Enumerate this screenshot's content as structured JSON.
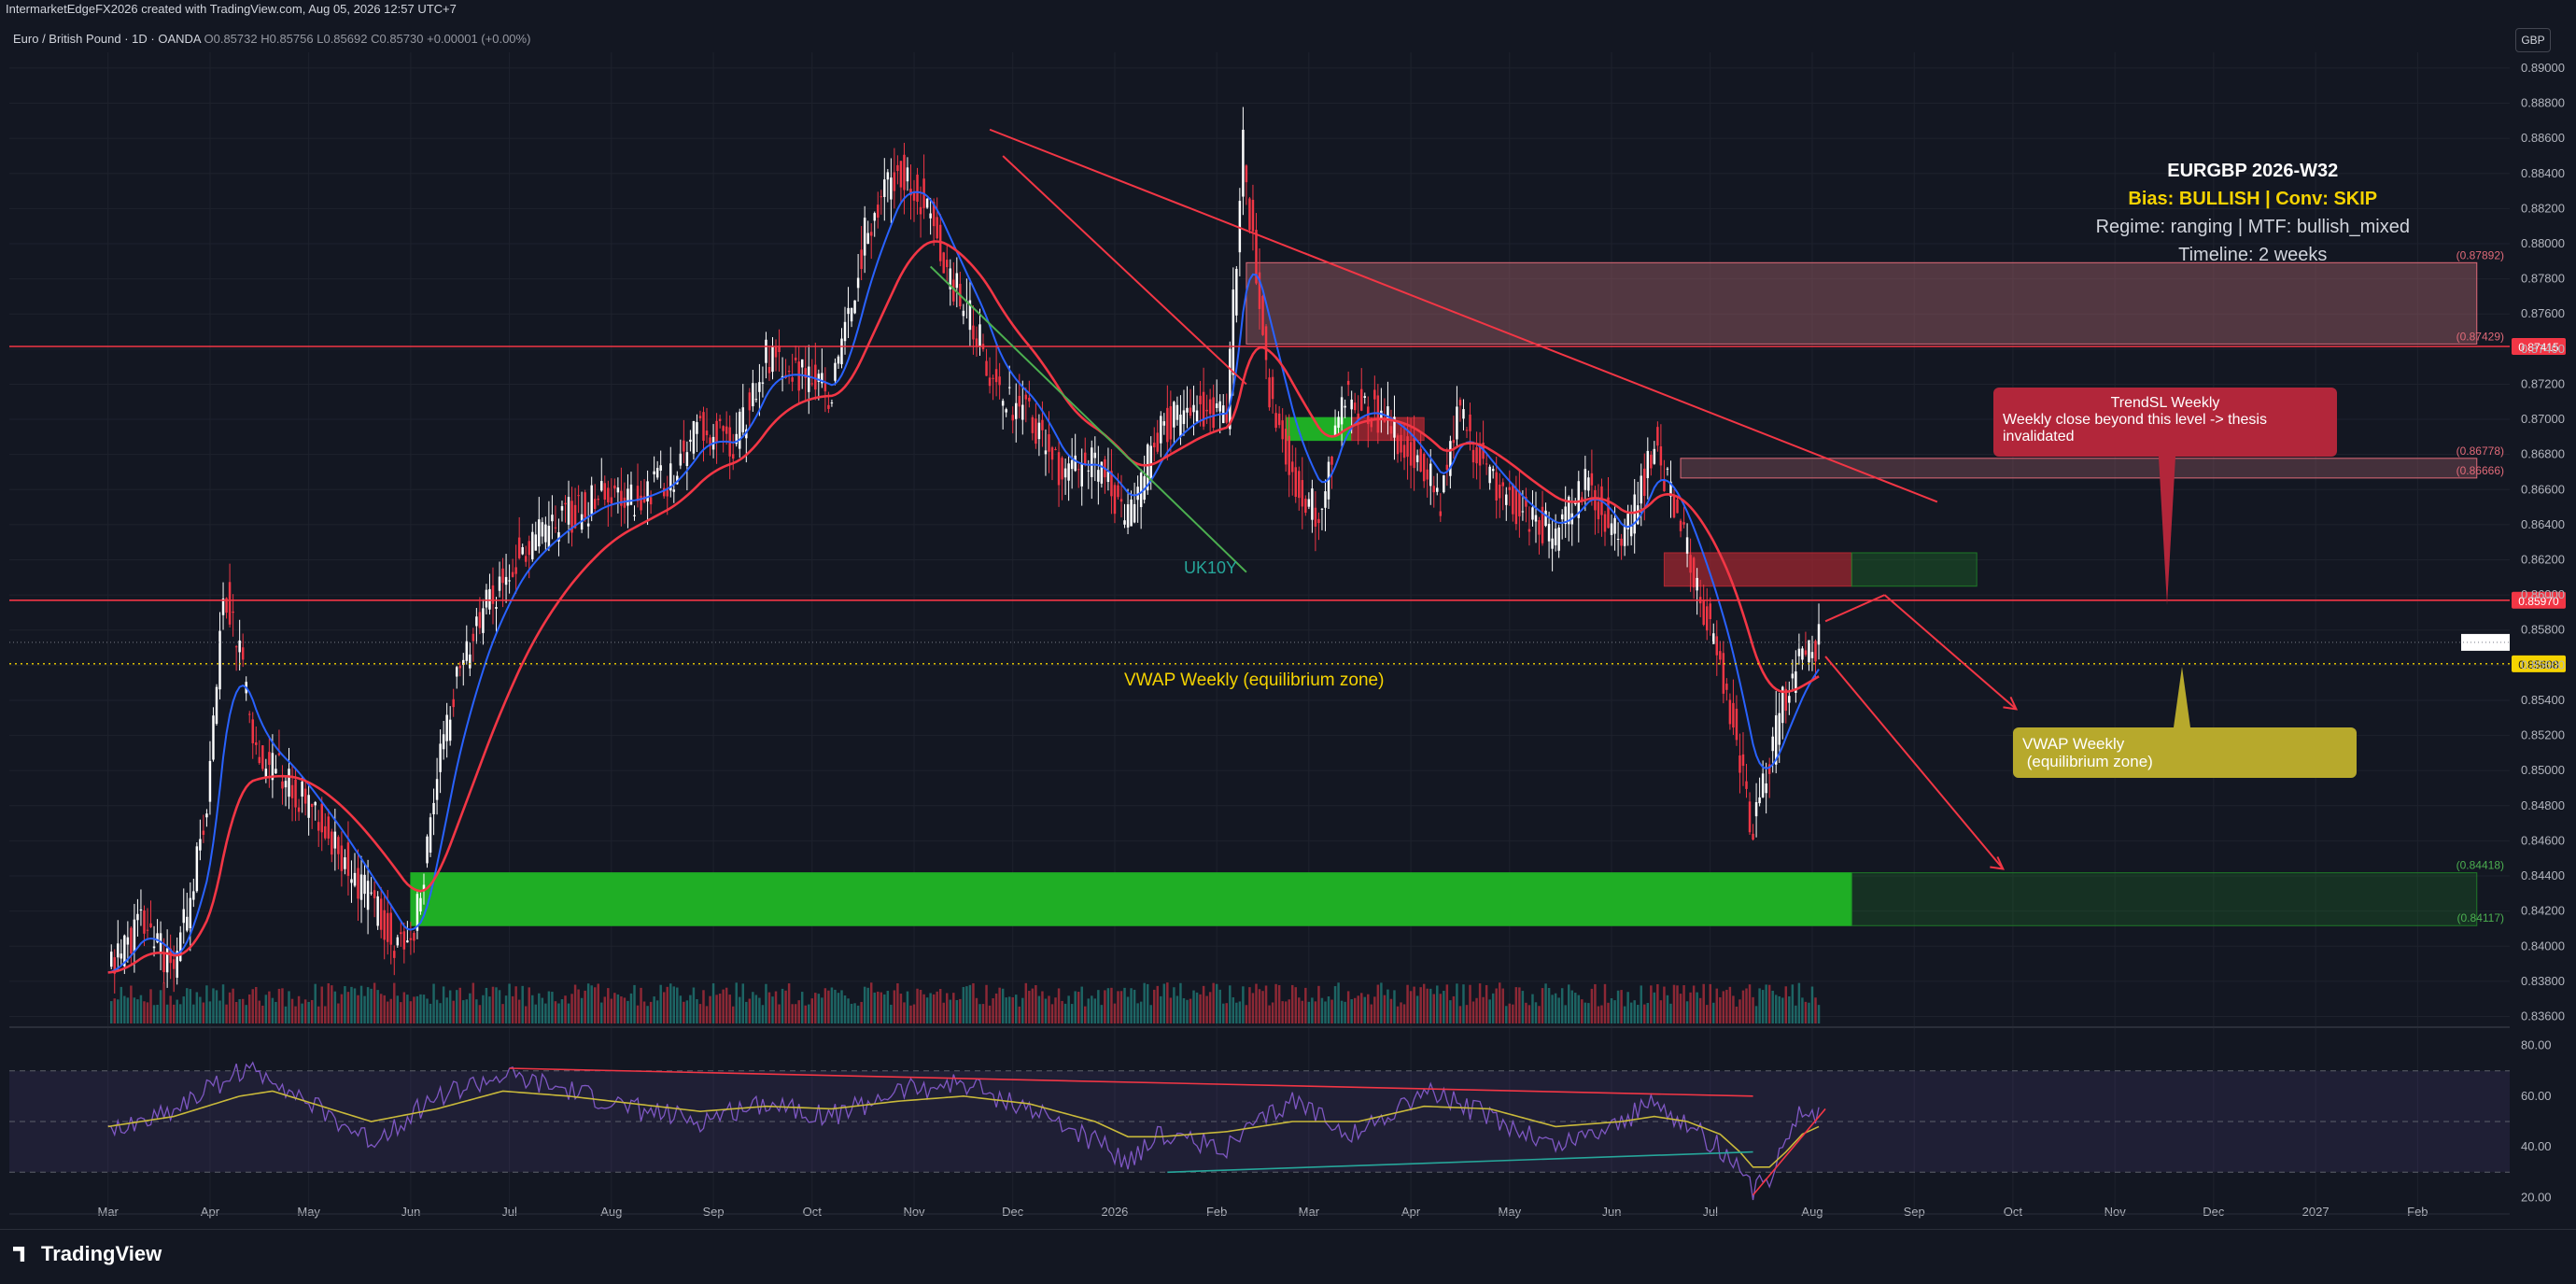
{
  "header": {
    "credit": "IntermarketEdgeFX2026 created with TradingView.com, Aug 05, 2026 12:57 UTC+7",
    "symbol": "Euro / British Pound · 1D · OANDA",
    "open": "O0.85732",
    "high": "H0.85756",
    "low": "L0.85692",
    "close": "C0.85730",
    "change": "+0.00001 (+0.00%)",
    "currency_button": "GBP"
  },
  "info_panel": {
    "title": "EURGBP 2026-W32",
    "bias": "Bias: BULLISH | Conv: SKIP",
    "regime": "Regime: ranging | MTF: bullish_mixed",
    "timeline": "Timeline: 2 weeks"
  },
  "callouts": {
    "trend_sl_title": "TrendSL Weekly",
    "trend_sl_body": "Weekly close beyond this level -> thesis invalidated",
    "vwap_box_line1": "VWAP Weekly",
    "vwap_box_line2": " (equilibrium zone)",
    "vwap_label": "VWAP Weekly (equilibrium zone)",
    "uk10y_label": "UK10Y"
  },
  "footer": {
    "brand": "TradingView"
  },
  "colors": {
    "background": "#131722",
    "bull": "#ffffff",
    "bear": "#f23645",
    "ema_fast": "#2962ff",
    "ema_slow": "#f23645",
    "vwap": "#f5d300",
    "demand_zone": "#1fae25",
    "supply_zone": "#8a4a55",
    "rsi_line": "#7e57c2",
    "rsi_signal": "#c9b93a"
  },
  "chart_data": {
    "type": "line",
    "title": "Euro / British Pound · 1D · OANDA",
    "x_ticks": [
      "Mar",
      "Apr",
      "May",
      "Jun",
      "Jul",
      "Aug",
      "Sep",
      "Oct",
      "Nov",
      "Dec",
      "2026",
      "Feb",
      "Mar",
      "Apr",
      "May",
      "Jun",
      "Jul",
      "Aug",
      "Sep",
      "Oct",
      "Nov",
      "Dec",
      "2027",
      "Feb"
    ],
    "x_tick_index": [
      0,
      31,
      61,
      92,
      122,
      153,
      184,
      214,
      245,
      275,
      306,
      337,
      365,
      396,
      426,
      457,
      487,
      518,
      549,
      579,
      610,
      640,
      671,
      702
    ],
    "y_ticks": [
      "0.89000",
      "0.88800",
      "0.88600",
      "0.88400",
      "0.88200",
      "0.88000",
      "0.87800",
      "0.87600",
      "0.87400",
      "0.87200",
      "0.87000",
      "0.86800",
      "0.86600",
      "0.86400",
      "0.86200",
      "0.86000",
      "0.85800",
      "0.85600",
      "0.85400",
      "0.85200",
      "0.85000",
      "0.84800",
      "0.84600",
      "0.84400",
      "0.84200",
      "0.84000",
      "0.83800",
      "0.83600"
    ],
    "ylim": [
      0.8356,
      0.8909
    ],
    "close_series": {
      "index": [
        0,
        10,
        20,
        30,
        35,
        40,
        45,
        55,
        70,
        80,
        90,
        95,
        100,
        105,
        115,
        125,
        140,
        150,
        160,
        170,
        180,
        190,
        200,
        210,
        220,
        230,
        240,
        248,
        255,
        260,
        265,
        270,
        280,
        290,
        300,
        310,
        320,
        330,
        340,
        345,
        352,
        360,
        368,
        375,
        385,
        395,
        405,
        410,
        420,
        430,
        440,
        450,
        460,
        470,
        480,
        488,
        492,
        496,
        500,
        505,
        510,
        515,
        520
      ],
      "values": [
        0.8385,
        0.8415,
        0.8385,
        0.8475,
        0.8605,
        0.8565,
        0.8505,
        0.8495,
        0.8455,
        0.8425,
        0.8395,
        0.8425,
        0.8495,
        0.8545,
        0.8595,
        0.8625,
        0.8645,
        0.8655,
        0.8655,
        0.8665,
        0.8695,
        0.8685,
        0.8735,
        0.8725,
        0.8715,
        0.8805,
        0.8845,
        0.8825,
        0.8785,
        0.8765,
        0.8745,
        0.8715,
        0.8705,
        0.8665,
        0.8675,
        0.8645,
        0.8695,
        0.8705,
        0.8705,
        0.8855,
        0.8725,
        0.8665,
        0.8645,
        0.8715,
        0.8705,
        0.8685,
        0.8655,
        0.8705,
        0.8665,
        0.8645,
        0.8635,
        0.8665,
        0.8625,
        0.8685,
        0.8625,
        0.8575,
        0.8545,
        0.8505,
        0.8465,
        0.8505,
        0.8545,
        0.8565,
        0.8573
      ]
    },
    "last_index": 520,
    "levels": [
      {
        "value": 0.87892,
        "label": "(0.87892)"
      },
      {
        "value": 0.87429,
        "label": "(0.87429)"
      },
      {
        "value": 0.87415,
        "label": "0.87415"
      },
      {
        "value": 0.86778,
        "label": "(0.86778)"
      },
      {
        "value": 0.86666,
        "label": "(0.86666)"
      },
      {
        "value": 0.8597,
        "label": "0.85970"
      },
      {
        "value": 0.85608,
        "label": "0.85608"
      },
      {
        "value": 0.84418,
        "label": "(0.84418)"
      },
      {
        "value": 0.84117,
        "label": "(0.84117)"
      }
    ],
    "zones": [
      {
        "kind": "supply",
        "from_index": 346,
        "to_index": 720,
        "low": 0.87429,
        "high": 0.87892
      },
      {
        "kind": "supply-thin",
        "from_index": 478,
        "to_index": 720,
        "low": 0.86666,
        "high": 0.86778
      },
      {
        "kind": "demand",
        "from_index": 92,
        "to_index": 530,
        "low": 0.84117,
        "high": 0.84418
      },
      {
        "kind": "demand-ext",
        "from_index": 530,
        "to_index": 720,
        "low": 0.84117,
        "high": 0.84418
      },
      {
        "kind": "ob-red",
        "from_index": 473,
        "to_index": 530,
        "low": 0.8605,
        "high": 0.8624
      },
      {
        "kind": "ob-green-ext",
        "from_index": 530,
        "to_index": 568,
        "low": 0.8605,
        "high": 0.8624
      },
      {
        "kind": "ob-green",
        "from_index": 358,
        "to_index": 378,
        "low": 0.8688,
        "high": 0.8701
      },
      {
        "kind": "ob-red-small",
        "from_index": 378,
        "to_index": 400,
        "low": 0.8688,
        "high": 0.8701
      }
    ],
    "trendlines": [
      {
        "from": [
          268,
          0.8865
        ],
        "to": [
          556,
          0.8653
        ],
        "color": "#f23645"
      },
      {
        "from": [
          272,
          0.885
        ],
        "to": [
          346,
          0.872
        ],
        "color": "#f23645"
      },
      {
        "from": [
          250,
          0.8787
        ],
        "to": [
          346,
          0.8613
        ],
        "color": "#4caf50"
      },
      {
        "from": [
          522,
          0.8585
        ],
        "to": [
          540,
          0.86
        ],
        "color": "#f23645"
      },
      {
        "from": [
          540,
          0.86
        ],
        "to": [
          580,
          0.8535
        ],
        "color": "#f23645"
      },
      {
        "from": [
          522,
          0.8565
        ],
        "to": [
          576,
          0.8444
        ],
        "color": "#f23645"
      }
    ],
    "rsi": {
      "ylim": [
        15,
        85
      ],
      "y_ticks": [
        "80.00",
        "60.00",
        "40.00",
        "20.00"
      ],
      "levels": [
        70,
        50,
        30
      ],
      "index": [
        0,
        20,
        40,
        50,
        60,
        80,
        100,
        120,
        140,
        160,
        180,
        200,
        220,
        240,
        260,
        280,
        300,
        310,
        320,
        340,
        360,
        380,
        400,
        420,
        440,
        460,
        470,
        480,
        490,
        496,
        500,
        505,
        510,
        515,
        520
      ],
      "values": [
        45,
        55,
        70,
        68,
        58,
        42,
        60,
        68,
        62,
        55,
        50,
        58,
        52,
        62,
        65,
        55,
        42,
        35,
        45,
        40,
        58,
        45,
        62,
        52,
        40,
        50,
        58,
        48,
        40,
        30,
        22,
        28,
        45,
        55,
        52
      ],
      "signal": [
        48,
        52,
        60,
        62,
        58,
        50,
        55,
        62,
        60,
        57,
        54,
        56,
        55,
        58,
        60,
        57,
        50,
        44,
        44,
        46,
        50,
        50,
        56,
        55,
        48,
        50,
        52,
        50,
        45,
        38,
        32,
        32,
        38,
        45,
        48
      ]
    }
  }
}
